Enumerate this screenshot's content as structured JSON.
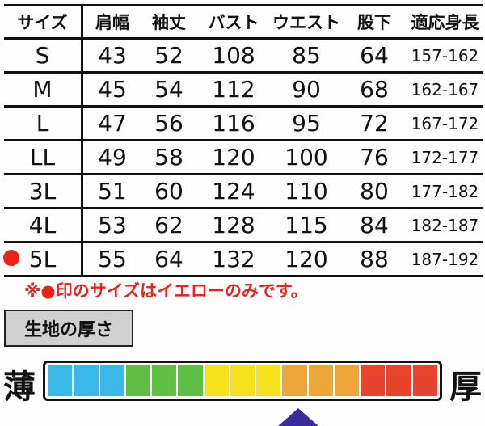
{
  "table": {
    "headers": [
      "サイズ",
      "肩幅",
      "袖丈",
      "バスト",
      "ウエスト",
      "股下",
      "適応身長"
    ],
    "rows": [
      [
        "S",
        "43",
        "52",
        "108",
        "85",
        "64",
        "157-162"
      ],
      [
        "M",
        "45",
        "54",
        "112",
        "90",
        "68",
        "162-167"
      ],
      [
        "L",
        "47",
        "56",
        "116",
        "95",
        "72",
        "167-172"
      ],
      [
        "LL",
        "49",
        "58",
        "120",
        "100",
        "76",
        "172-177"
      ],
      [
        "3L",
        "51",
        "60",
        "124",
        "110",
        "80",
        "177-182"
      ],
      [
        "4L",
        "53",
        "62",
        "128",
        "115",
        "84",
        "182-187"
      ],
      [
        "5L",
        "55",
        "64",
        "132",
        "120",
        "88",
        "187-192"
      ]
    ],
    "marked_row": "5L",
    "mark_color": "#e8231c"
  },
  "note": "※●印のサイズはイエローのみです。",
  "thickness": {
    "label": "生地の厚さ",
    "thin_label": "薄",
    "thick_label": "厚",
    "segments": [
      "#3ab8e8",
      "#3ab8e8",
      "#3ab8e8",
      "#5fbf44",
      "#5fbf44",
      "#5fbf44",
      "#f5e21a",
      "#f5e21a",
      "#f5e21a",
      "#eca63a",
      "#eca63a",
      "#eca63a",
      "#e8432c",
      "#e8432c",
      "#e8432c"
    ],
    "level": 10,
    "level_max": 15,
    "marker_color": "#3a2a9c"
  }
}
